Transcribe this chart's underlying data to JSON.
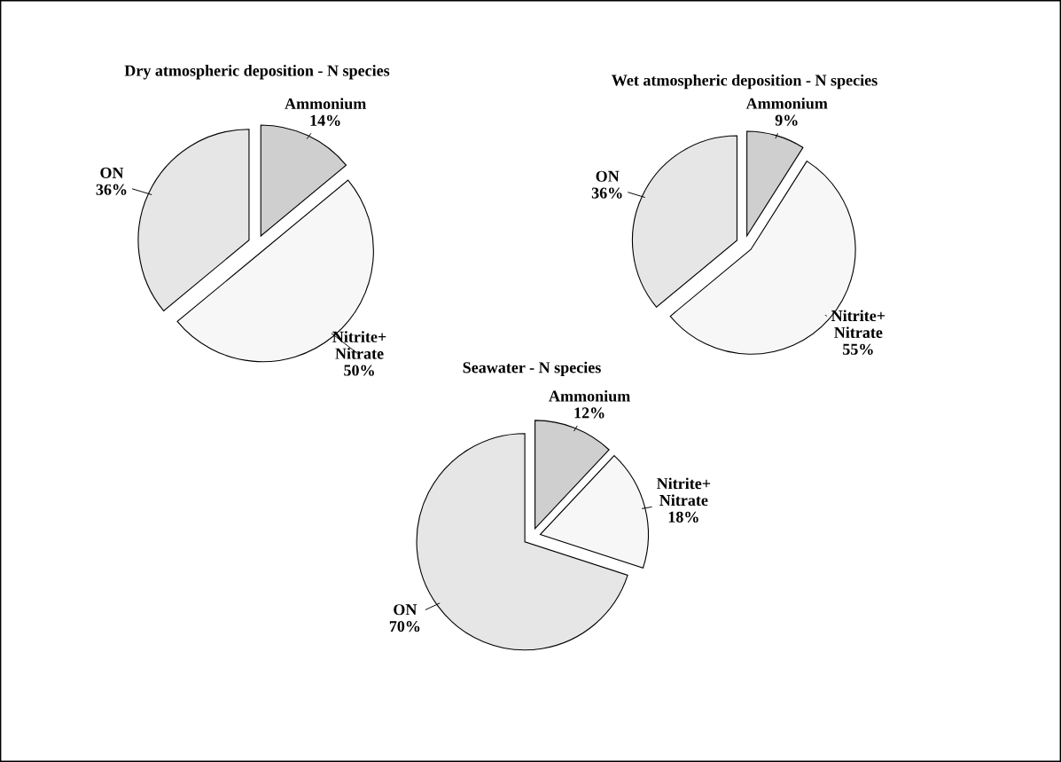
{
  "chart_data": [
    {
      "type": "pie",
      "title": "Dry atmospheric deposition - N species",
      "categories": [
        "Ammonium",
        "Nitrite+\nNitrate",
        "ON"
      ],
      "values": [
        14,
        50,
        36
      ],
      "value_labels": [
        "14%",
        "50%",
        "36%"
      ],
      "colors": [
        "#cfcfcf",
        "#f7f7f7",
        "#e6e6e6"
      ]
    },
    {
      "type": "pie",
      "title": "Wet atmospheric deposition - N species",
      "categories": [
        "Ammonium",
        "Nitrite+\nNitrate",
        "ON"
      ],
      "values": [
        9,
        55,
        36
      ],
      "value_labels": [
        "9%",
        "55%",
        "36%"
      ],
      "colors": [
        "#cfcfcf",
        "#f7f7f7",
        "#e6e6e6"
      ]
    },
    {
      "type": "pie",
      "title": "Seawater - N species",
      "categories": [
        "Ammonium",
        "Nitrite+\nNitrate",
        "ON"
      ],
      "values": [
        12,
        18,
        70
      ],
      "value_labels": [
        "12%",
        "18%",
        "70%"
      ],
      "colors": [
        "#cfcfcf",
        "#f7f7f7",
        "#e6e6e6"
      ]
    }
  ]
}
